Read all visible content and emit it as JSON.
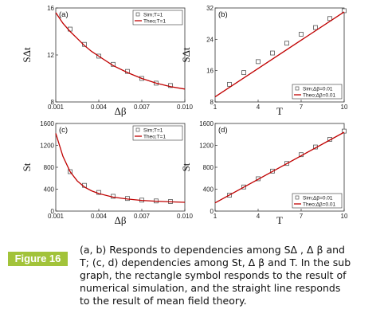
{
  "figure": {
    "label": "Figure 16",
    "caption_lines": [
      "(a, b) Responds to dependencies among SΔ , Δ β and",
      "T; (c, d) dependencies among St, Δ β and T. In the sub",
      "graph, the rectangle symbol responds to the result of",
      "numerical simulation, and the straight line responds",
      "to the result of mean field theory."
    ]
  },
  "colors": {
    "theory_line": "#c00000",
    "marker": "#555555",
    "badge": "#a2c33a"
  },
  "chart_data": [
    {
      "panel": "(a)",
      "type": "scatter",
      "xlabel": "Δβ",
      "ylabel": "SΔt",
      "xlim": [
        0.001,
        0.01
      ],
      "ylim": [
        8,
        16
      ],
      "xticks": [
        0.001,
        0.004,
        0.007,
        0.01
      ],
      "xtick_labels": [
        "0.001",
        "0.004",
        "0.007",
        "0.010"
      ],
      "yticks": [
        8,
        12,
        16
      ],
      "ytick_labels": [
        "8",
        "12",
        "16"
      ],
      "legend": [
        "Sim;T=1",
        "Theo;T=1"
      ],
      "legend_position": "top-right",
      "series": [
        {
          "name": "Sim;T=1",
          "kind": "markers",
          "x": [
            0.002,
            0.003,
            0.004,
            0.005,
            0.006,
            0.007,
            0.008,
            0.009
          ],
          "y": [
            14.2,
            12.9,
            11.9,
            11.2,
            10.6,
            10.0,
            9.6,
            9.4
          ]
        },
        {
          "name": "Theo;T=1",
          "kind": "line",
          "x": [
            0.001,
            0.0015,
            0.002,
            0.0025,
            0.003,
            0.0035,
            0.004,
            0.005,
            0.006,
            0.007,
            0.008,
            0.009,
            0.01
          ],
          "y": [
            15.6,
            14.7,
            14.0,
            13.4,
            12.8,
            12.3,
            11.9,
            11.1,
            10.5,
            10.0,
            9.6,
            9.3,
            9.1
          ]
        }
      ]
    },
    {
      "panel": "(b)",
      "type": "scatter",
      "xlabel": "T",
      "ylabel": "SΔt",
      "xlim": [
        1,
        10
      ],
      "ylim": [
        8,
        32
      ],
      "xticks": [
        1,
        4,
        7,
        10
      ],
      "xtick_labels": [
        "1",
        "4",
        "7",
        "10"
      ],
      "yticks": [
        8,
        16,
        24,
        32
      ],
      "ytick_labels": [
        "8",
        "16",
        "24",
        "32"
      ],
      "legend": [
        "Sim;Δβ=0.01",
        "Theo;Δβ=0.01"
      ],
      "legend_position": "bottom-right",
      "series": [
        {
          "name": "Sim;Δβ=0.01",
          "kind": "markers",
          "x": [
            2,
            3,
            4,
            5,
            6,
            7,
            8,
            9,
            10
          ],
          "y": [
            12.5,
            15.5,
            18.3,
            20.5,
            23.0,
            25.3,
            27.0,
            29.3,
            31.3
          ]
        },
        {
          "name": "Theo;Δβ=0.01",
          "kind": "line",
          "x": [
            1,
            10
          ],
          "y": [
            9.3,
            31.0
          ]
        }
      ]
    },
    {
      "panel": "(c)",
      "type": "scatter",
      "xlabel": "Δβ",
      "ylabel": "St",
      "xlim": [
        0.001,
        0.01
      ],
      "ylim": [
        0,
        1600
      ],
      "xticks": [
        0.001,
        0.004,
        0.007,
        0.01
      ],
      "xtick_labels": [
        "0.001",
        "0.004",
        "0.007",
        "0.010"
      ],
      "yticks": [
        0,
        400,
        800,
        1200,
        1600
      ],
      "ytick_labels": [
        "0",
        "400",
        "800",
        "1200",
        "1600"
      ],
      "legend": [
        "Sim;T=1",
        "Theo;T=1"
      ],
      "legend_position": "top-right",
      "series": [
        {
          "name": "Sim;T=1",
          "kind": "markers",
          "x": [
            0.002,
            0.003,
            0.004,
            0.005,
            0.006,
            0.007,
            0.008,
            0.009
          ],
          "y": [
            720,
            470,
            340,
            270,
            230,
            200,
            185,
            175
          ]
        },
        {
          "name": "Theo;T=1",
          "kind": "line",
          "x": [
            0.001,
            0.0015,
            0.002,
            0.0025,
            0.003,
            0.0035,
            0.004,
            0.005,
            0.006,
            0.007,
            0.008,
            0.009,
            0.01
          ],
          "y": [
            1420,
            1000,
            720,
            550,
            440,
            370,
            320,
            255,
            220,
            195,
            180,
            168,
            160
          ]
        }
      ]
    },
    {
      "panel": "(d)",
      "type": "scatter",
      "xlabel": "T",
      "ylabel": "St",
      "xlim": [
        1,
        10
      ],
      "ylim": [
        0,
        1600
      ],
      "xticks": [
        1,
        4,
        7,
        10
      ],
      "xtick_labels": [
        "1",
        "4",
        "7",
        "10"
      ],
      "yticks": [
        0,
        400,
        800,
        1200,
        1600
      ],
      "ytick_labels": [
        "0",
        "400",
        "800",
        "1200",
        "1600"
      ],
      "legend": [
        "Sim;Δβ=0.01",
        "Theo;Δβ=0.01"
      ],
      "legend_position": "bottom-right",
      "series": [
        {
          "name": "Sim;Δβ=0.01",
          "kind": "markers",
          "x": [
            2,
            3,
            4,
            5,
            6,
            7,
            8,
            9,
            10
          ],
          "y": [
            290,
            440,
            590,
            730,
            870,
            1030,
            1170,
            1310,
            1460
          ]
        },
        {
          "name": "Theo;Δβ=0.01",
          "kind": "line",
          "x": [
            1,
            10
          ],
          "y": [
            150,
            1440
          ]
        }
      ]
    }
  ]
}
